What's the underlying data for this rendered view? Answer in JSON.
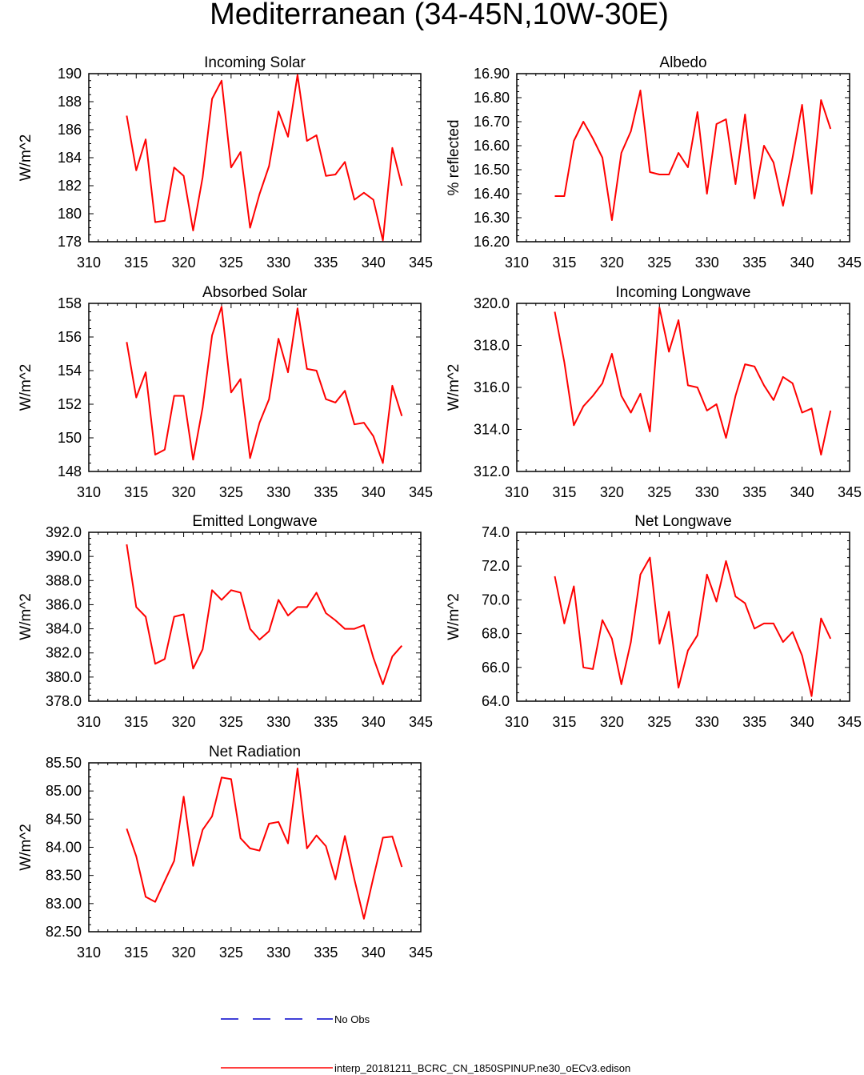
{
  "figure": {
    "title": "Mediterranean (34-45N,10W-30E)",
    "legend": {
      "obs_label": "No Obs",
      "model_label": "interp_20181211_BCRC_CN_1850SPINUP.ne30_oECv3.edison"
    },
    "colors": {
      "model": "#ff0000",
      "obs": "#0000cc",
      "axis": "#000000"
    }
  },
  "chart_data": [
    {
      "type": "line",
      "title": "Incoming Solar",
      "ylabel": "W/m^2",
      "xlabel": "",
      "xlim": [
        310,
        345
      ],
      "ylim": [
        178,
        190
      ],
      "xticks": [
        "310",
        "315",
        "320",
        "325",
        "330",
        "335",
        "340",
        "345"
      ],
      "yticks": [
        "178",
        "180",
        "182",
        "184",
        "186",
        "188",
        "190"
      ],
      "series": [
        {
          "name": "model",
          "x": [
            314,
            315,
            316,
            317,
            318,
            319,
            320,
            321,
            322,
            323,
            324,
            325,
            326,
            327,
            328,
            329,
            330,
            331,
            332,
            333,
            334,
            335,
            336,
            337,
            338,
            339,
            340,
            341,
            342,
            343
          ],
          "values": [
            187.0,
            183.1,
            185.3,
            179.4,
            179.5,
            183.3,
            182.7,
            178.8,
            182.6,
            188.2,
            189.5,
            183.3,
            184.4,
            179.0,
            181.4,
            183.4,
            187.3,
            185.5,
            189.9,
            185.2,
            185.6,
            182.7,
            182.8,
            183.7,
            181.0,
            181.5,
            181.0,
            178.1,
            184.7,
            182.0
          ]
        }
      ]
    },
    {
      "type": "line",
      "title": "Albedo",
      "ylabel": "% reflected",
      "xlabel": "",
      "xlim": [
        310,
        345
      ],
      "ylim": [
        16.2,
        16.9
      ],
      "xticks": [
        "310",
        "315",
        "320",
        "325",
        "330",
        "335",
        "340",
        "345"
      ],
      "yticks": [
        "16.20",
        "16.30",
        "16.40",
        "16.50",
        "16.60",
        "16.70",
        "16.80",
        "16.90"
      ],
      "series": [
        {
          "name": "model",
          "x": [
            314,
            315,
            316,
            317,
            318,
            319,
            320,
            321,
            322,
            323,
            324,
            325,
            326,
            327,
            328,
            329,
            330,
            331,
            332,
            333,
            334,
            335,
            336,
            337,
            338,
            339,
            340,
            341,
            342,
            343
          ],
          "values": [
            16.39,
            16.39,
            16.62,
            16.7,
            16.63,
            16.55,
            16.29,
            16.57,
            16.66,
            16.83,
            16.49,
            16.48,
            16.48,
            16.57,
            16.51,
            16.74,
            16.4,
            16.69,
            16.71,
            16.44,
            16.73,
            16.38,
            16.6,
            16.53,
            16.35,
            16.55,
            16.77,
            16.4,
            16.79,
            16.67
          ]
        }
      ]
    },
    {
      "type": "line",
      "title": "Absorbed Solar",
      "ylabel": "W/m^2",
      "xlabel": "",
      "xlim": [
        310,
        345
      ],
      "ylim": [
        148,
        158
      ],
      "xticks": [
        "310",
        "315",
        "320",
        "325",
        "330",
        "335",
        "340",
        "345"
      ],
      "yticks": [
        "148",
        "150",
        "152",
        "154",
        "156",
        "158"
      ],
      "series": [
        {
          "name": "model",
          "x": [
            314,
            315,
            316,
            317,
            318,
            319,
            320,
            321,
            322,
            323,
            324,
            325,
            326,
            327,
            328,
            329,
            330,
            331,
            332,
            333,
            334,
            335,
            336,
            337,
            338,
            339,
            340,
            341,
            342,
            343
          ],
          "values": [
            155.7,
            152.4,
            153.9,
            149.0,
            149.3,
            152.5,
            152.5,
            148.7,
            151.8,
            156.1,
            157.8,
            152.7,
            153.5,
            148.8,
            150.9,
            152.3,
            155.9,
            153.9,
            157.7,
            154.1,
            154.0,
            152.3,
            152.1,
            152.8,
            150.8,
            150.9,
            150.1,
            148.5,
            153.1,
            151.3
          ]
        }
      ]
    },
    {
      "type": "line",
      "title": "Incoming Longwave",
      "ylabel": "W/m^2",
      "xlabel": "",
      "xlim": [
        310,
        345
      ],
      "ylim": [
        312,
        320
      ],
      "xticks": [
        "310",
        "315",
        "320",
        "325",
        "330",
        "335",
        "340",
        "345"
      ],
      "yticks": [
        "312.0",
        "314.0",
        "316.0",
        "318.0",
        "320.0"
      ],
      "series": [
        {
          "name": "model",
          "x": [
            314,
            315,
            316,
            317,
            318,
            319,
            320,
            321,
            322,
            323,
            324,
            325,
            326,
            327,
            328,
            329,
            330,
            331,
            332,
            333,
            334,
            335,
            336,
            337,
            338,
            339,
            340,
            341,
            342,
            343
          ],
          "values": [
            319.6,
            317.2,
            314.2,
            315.1,
            315.6,
            316.2,
            317.6,
            315.6,
            314.8,
            315.7,
            313.9,
            319.8,
            317.7,
            319.2,
            316.1,
            316.0,
            314.9,
            315.2,
            313.6,
            315.6,
            317.1,
            317.0,
            316.1,
            315.4,
            316.5,
            316.2,
            314.8,
            315.0,
            312.8,
            314.9
          ]
        }
      ]
    },
    {
      "type": "line",
      "title": "Emitted Longwave",
      "ylabel": "W/m^2",
      "xlabel": "",
      "xlim": [
        310,
        345
      ],
      "ylim": [
        378,
        392
      ],
      "xticks": [
        "310",
        "315",
        "320",
        "325",
        "330",
        "335",
        "340",
        "345"
      ],
      "yticks": [
        "378.0",
        "380.0",
        "382.0",
        "384.0",
        "386.0",
        "388.0",
        "390.0",
        "392.0"
      ],
      "series": [
        {
          "name": "model",
          "x": [
            314,
            315,
            316,
            317,
            318,
            319,
            320,
            321,
            322,
            323,
            324,
            325,
            326,
            327,
            328,
            329,
            330,
            331,
            332,
            333,
            334,
            335,
            336,
            337,
            338,
            339,
            340,
            341,
            342,
            343
          ],
          "values": [
            391.0,
            385.8,
            385.0,
            381.1,
            381.5,
            385.0,
            385.2,
            380.7,
            382.3,
            387.2,
            386.4,
            387.2,
            387.0,
            384.0,
            383.1,
            383.8,
            386.4,
            385.1,
            385.8,
            385.8,
            387.0,
            385.3,
            384.7,
            384.0,
            384.0,
            384.3,
            381.6,
            379.4,
            381.7,
            382.6
          ]
        }
      ]
    },
    {
      "type": "line",
      "title": "Net Longwave",
      "ylabel": "W/m^2",
      "xlabel": "",
      "xlim": [
        310,
        345
      ],
      "ylim": [
        64,
        74
      ],
      "xticks": [
        "310",
        "315",
        "320",
        "325",
        "330",
        "335",
        "340",
        "345"
      ],
      "yticks": [
        "64.0",
        "66.0",
        "68.0",
        "70.0",
        "72.0",
        "74.0"
      ],
      "series": [
        {
          "name": "model",
          "x": [
            314,
            315,
            316,
            317,
            318,
            319,
            320,
            321,
            322,
            323,
            324,
            325,
            326,
            327,
            328,
            329,
            330,
            331,
            332,
            333,
            334,
            335,
            336,
            337,
            338,
            339,
            340,
            341,
            342,
            343
          ],
          "values": [
            71.4,
            68.6,
            70.8,
            66.0,
            65.9,
            68.8,
            67.7,
            65.0,
            67.5,
            71.5,
            72.5,
            67.4,
            69.3,
            64.8,
            67.0,
            67.9,
            71.5,
            69.9,
            72.3,
            70.2,
            69.8,
            68.3,
            68.6,
            68.6,
            67.5,
            68.1,
            66.7,
            64.3,
            68.9,
            67.7
          ]
        }
      ]
    },
    {
      "type": "line",
      "title": "Net Radiation",
      "ylabel": "W/m^2",
      "xlabel": "",
      "xlim": [
        310,
        345
      ],
      "ylim": [
        82.5,
        85.5
      ],
      "xticks": [
        "310",
        "315",
        "320",
        "325",
        "330",
        "335",
        "340",
        "345"
      ],
      "yticks": [
        "82.50",
        "83.00",
        "83.50",
        "84.00",
        "84.50",
        "85.00",
        "85.50"
      ],
      "series": [
        {
          "name": "model",
          "x": [
            314,
            315,
            316,
            317,
            318,
            319,
            320,
            321,
            322,
            323,
            324,
            325,
            326,
            327,
            328,
            329,
            330,
            331,
            332,
            333,
            334,
            335,
            336,
            337,
            338,
            339,
            340,
            341,
            342,
            343
          ],
          "values": [
            84.33,
            83.84,
            83.12,
            83.03,
            83.4,
            83.76,
            84.9,
            83.67,
            84.31,
            84.55,
            85.24,
            85.21,
            84.16,
            83.98,
            83.94,
            84.42,
            84.45,
            84.07,
            85.4,
            83.98,
            84.21,
            84.02,
            83.43,
            84.2,
            83.43,
            82.73,
            83.46,
            84.17,
            84.19,
            83.65
          ]
        }
      ]
    }
  ]
}
